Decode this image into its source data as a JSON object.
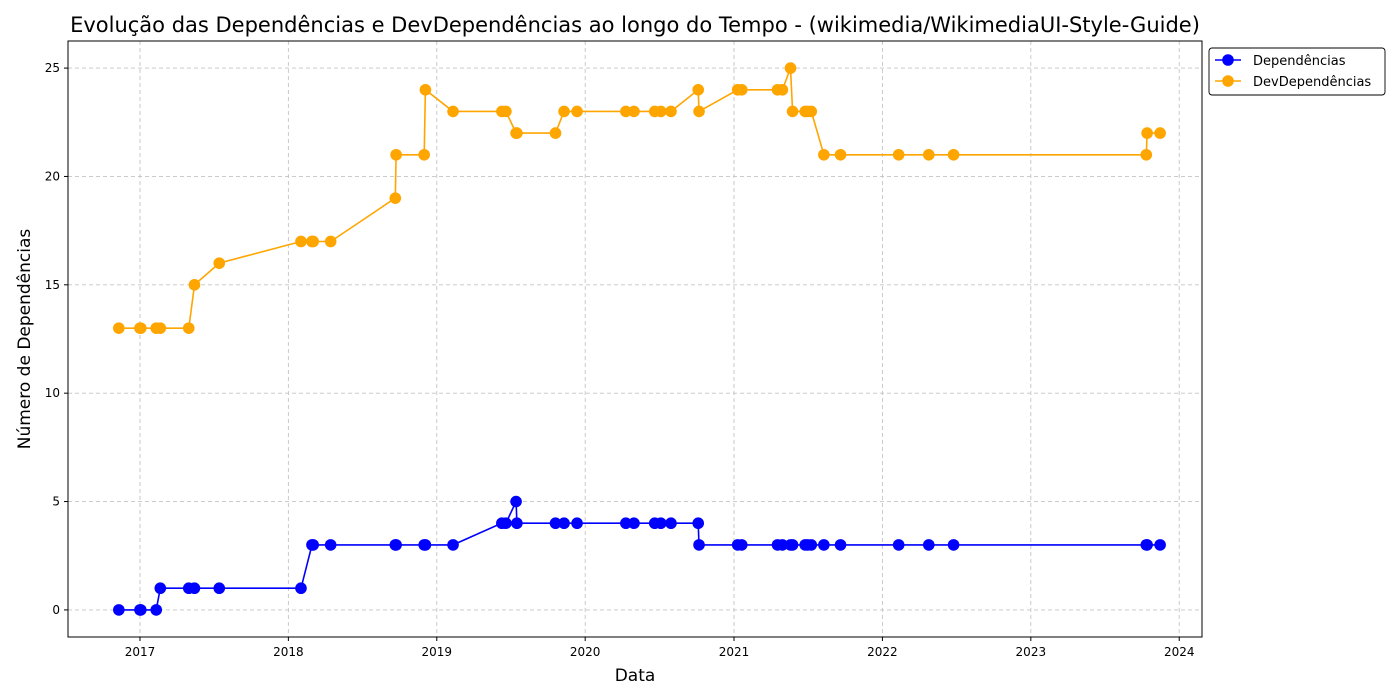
{
  "chart_data": {
    "type": "line",
    "title": "Evolução das Dependências e DevDependências ao longo do Tempo - (wikimedia/WikimediaUI-Style-Guide)",
    "xlabel": "Data",
    "ylabel": "Número de Dependências",
    "x_ticks": [
      "2017",
      "2018",
      "2019",
      "2020",
      "2021",
      "2022",
      "2023",
      "2024"
    ],
    "y_ticks": [
      0,
      5,
      10,
      15,
      20,
      25
    ],
    "xlim": [
      "2016-07-08",
      "2024-02-26"
    ],
    "ylim": [
      -1.25,
      26.25
    ],
    "grid": true,
    "legend_position": "top-right-outside",
    "x": [
      "2016-11-10",
      "2017-01-01",
      "2017-01-03",
      "2017-02-10",
      "2017-02-20",
      "2017-05-01",
      "2017-05-15",
      "2017-07-15",
      "2018-02-01",
      "2018-02-28",
      "2018-03-03",
      "2018-04-15",
      "2018-09-21",
      "2018-09-23",
      "2018-12-01",
      "2018-12-04",
      "2019-02-10",
      "2019-06-10",
      "2019-06-20",
      "2019-07-15",
      "2019-07-17",
      "2019-10-20",
      "2019-11-10",
      "2019-12-12",
      "2020-04-10",
      "2020-04-30",
      "2020-06-20",
      "2020-07-05",
      "2020-07-30",
      "2020-10-05",
      "2020-10-07",
      "2021-01-10",
      "2021-01-20",
      "2021-04-18",
      "2021-04-30",
      "2021-05-20",
      "2021-05-25",
      "2021-06-25",
      "2021-07-01",
      "2021-07-10",
      "2021-08-10",
      "2021-09-20",
      "2022-02-10",
      "2022-04-25",
      "2022-06-25",
      "2023-10-12",
      "2023-10-14",
      "2023-11-15"
    ],
    "series": [
      {
        "name": "Dependências",
        "color": "#0000ff",
        "values": [
          0,
          0,
          0,
          0,
          1,
          1,
          1,
          1,
          1,
          3,
          3,
          3,
          3,
          3,
          3,
          3,
          3,
          4,
          4,
          5,
          4,
          4,
          4,
          4,
          4,
          4,
          4,
          4,
          4,
          4,
          3,
          3,
          3,
          3,
          3,
          3,
          3,
          3,
          3,
          3,
          3,
          3,
          3,
          3,
          3,
          3,
          3,
          3
        ]
      },
      {
        "name": "DevDependências",
        "color": "#ffa500",
        "values": [
          13,
          13,
          13,
          13,
          13,
          13,
          15,
          16,
          17,
          17,
          17,
          17,
          19,
          21,
          21,
          24,
          23,
          23,
          23,
          22,
          22,
          22,
          23,
          23,
          23,
          23,
          23,
          23,
          23,
          24,
          23,
          24,
          24,
          24,
          24,
          25,
          23,
          23,
          23,
          23,
          21,
          21,
          21,
          21,
          21,
          21,
          22,
          22
        ]
      }
    ]
  }
}
